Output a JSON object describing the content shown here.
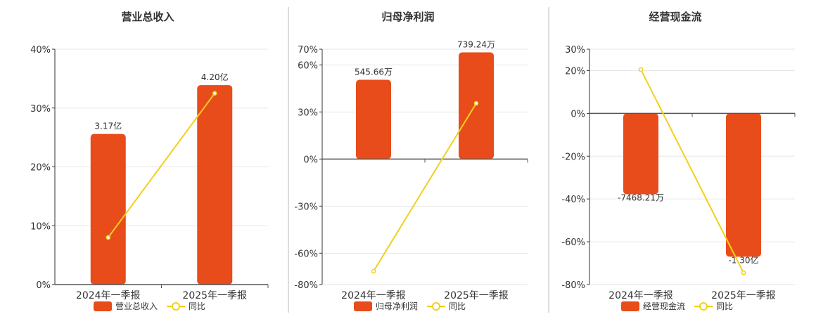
{
  "colors": {
    "bar": "#e84c1a",
    "line": "#f2d01c",
    "axis": "#333333",
    "grid": "#e6e6e6",
    "divider": "#bbbbbb",
    "text": "#333333"
  },
  "legend_line_label": "同比",
  "chart_data": [
    {
      "type": "bar",
      "title": "营业总收入",
      "categories": [
        "2024年一季报",
        "2025年一季报"
      ],
      "yticks": [
        0,
        10,
        20,
        30,
        40
      ],
      "ytick_labels": [
        "0%",
        "10%",
        "20%",
        "30%",
        "40%"
      ],
      "ylim": [
        0,
        40
      ],
      "bar_pct": [
        25.6,
        33.9
      ],
      "bar_labels": [
        "3.17亿",
        "4.20亿"
      ],
      "yoy_pct": [
        8,
        32.5
      ],
      "series": [
        {
          "name": "营业总收入",
          "values": [
            "3.17亿",
            "4.20亿"
          ]
        },
        {
          "name": "同比",
          "values": [
            8,
            32.5
          ]
        }
      ],
      "grid": true,
      "legend": "bottom"
    },
    {
      "type": "bar",
      "title": "归母净利润",
      "categories": [
        "2024年一季报",
        "2025年一季报"
      ],
      "yticks": [
        -80,
        -60,
        -30,
        0,
        30,
        60,
        70
      ],
      "ytick_labels": [
        "-80%",
        "-60%",
        "-30%",
        "0%",
        "30%",
        "60%",
        "70%"
      ],
      "ylim": [
        -80,
        70
      ],
      "bar_pct": [
        50.5,
        68
      ],
      "bar_labels": [
        "545.66万",
        "739.24万"
      ],
      "yoy_pct": [
        -71.5,
        35.5
      ],
      "series": [
        {
          "name": "归母净利润",
          "values": [
            "545.66万",
            "739.24万"
          ]
        },
        {
          "name": "同比",
          "values": [
            -71.5,
            35.5
          ]
        }
      ],
      "grid": true,
      "legend": "bottom"
    },
    {
      "type": "bar",
      "title": "经营现金流",
      "categories": [
        "2024年一季报",
        "2025年一季报"
      ],
      "yticks": [
        -80,
        -60,
        -40,
        -20,
        0,
        20,
        30
      ],
      "ytick_labels": [
        "-80%",
        "-60%",
        "-40%",
        "-20%",
        "0%",
        "20%",
        "30%"
      ],
      "ylim": [
        -80,
        30
      ],
      "bar_pct": [
        -37.8,
        -67
      ],
      "bar_labels": [
        "-7468.21万",
        "-1.30亿"
      ],
      "yoy_pct": [
        20.5,
        -74.5
      ],
      "series": [
        {
          "name": "经营现金流",
          "values": [
            "-7468.21万",
            "-1.30亿"
          ]
        },
        {
          "name": "同比",
          "values": [
            20.5,
            -74.5
          ]
        }
      ],
      "grid": true,
      "legend": "bottom"
    }
  ]
}
